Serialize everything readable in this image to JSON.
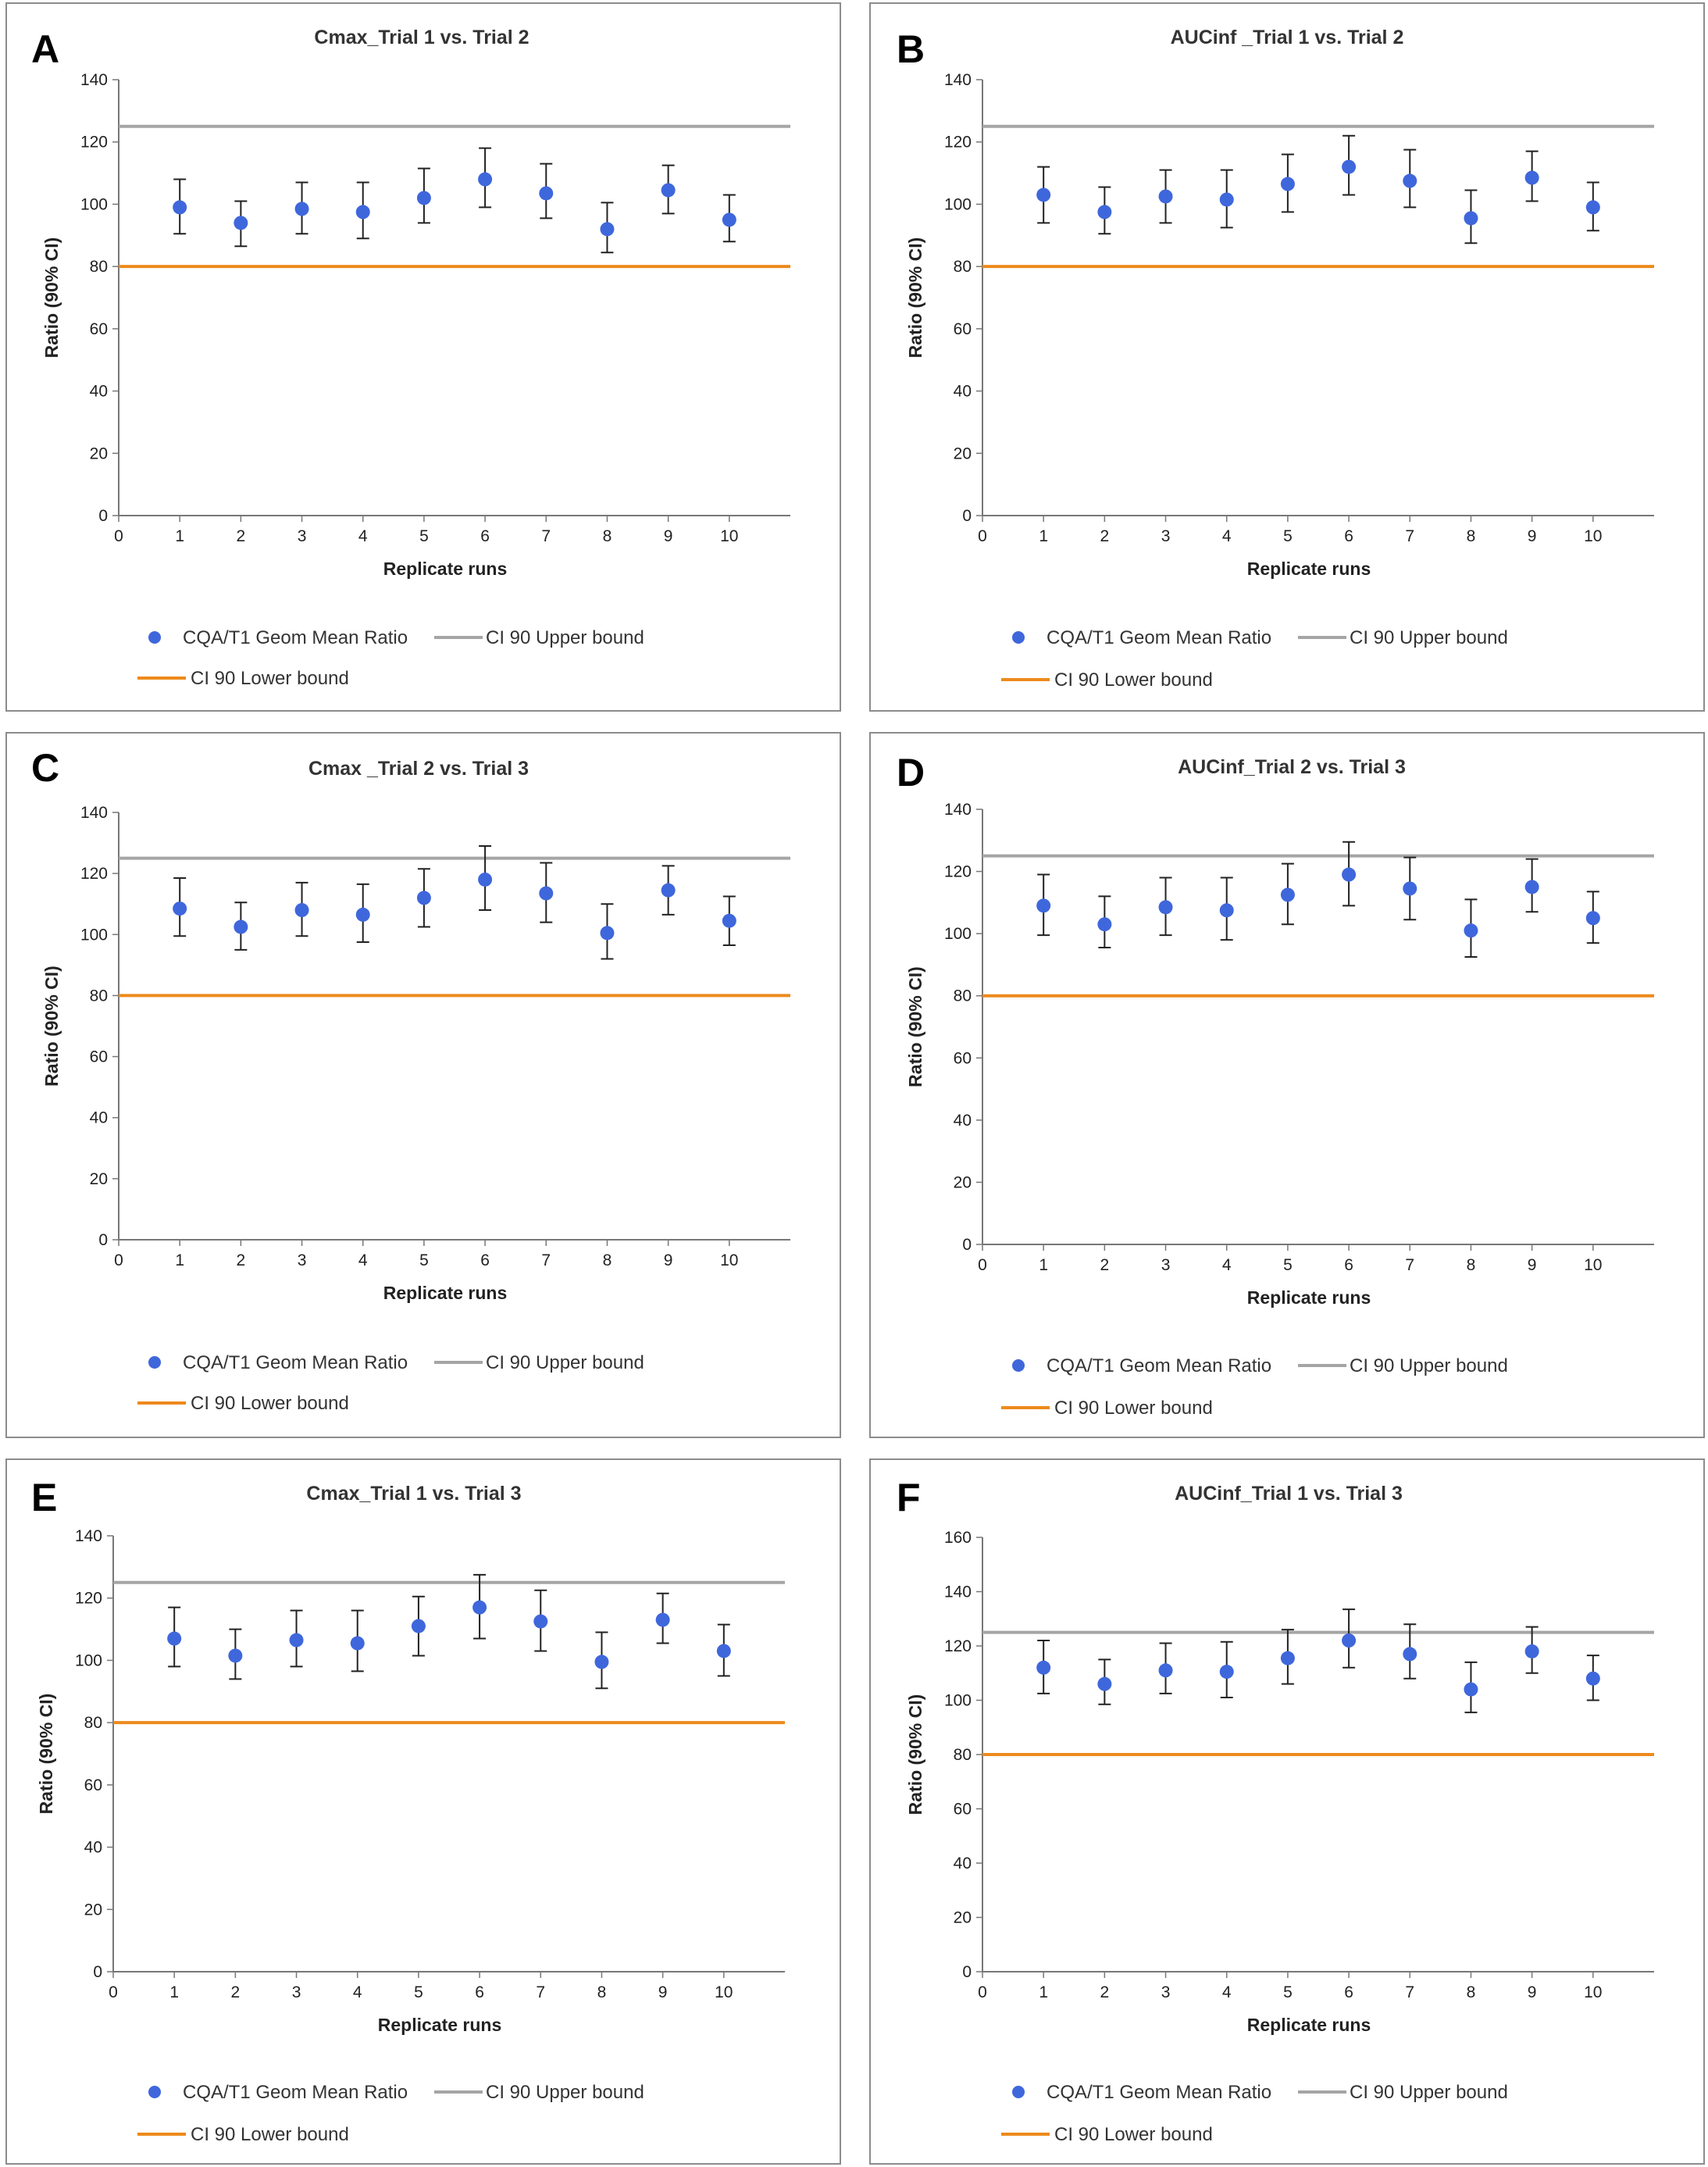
{
  "colors": {
    "point": "#3f67dc",
    "upper": "#a5a5a5",
    "lower": "#ed8a1c"
  },
  "legend": {
    "ratio": "CQA/T1 Geom Mean Ratio",
    "upper": "CI 90 Upper bound",
    "lower": "CI 90 Lower bound"
  },
  "chart_data": [
    {
      "type": "scatter",
      "panel": "A",
      "title": "Cmax_Trial 1 vs. Trial 2",
      "xlabel": "Replicate runs",
      "ylabel": "Ratio (90% CI)",
      "xlim": [
        0,
        11
      ],
      "ylim": [
        0,
        140
      ],
      "yticks": [
        0,
        20,
        40,
        60,
        80,
        100,
        120,
        140
      ],
      "xticks": [
        0,
        1,
        2,
        3,
        4,
        5,
        6,
        7,
        8,
        9,
        10
      ],
      "upper_bound": 125,
      "lower_bound": 80,
      "x": [
        1,
        2,
        3,
        4,
        5,
        6,
        7,
        8,
        9,
        10
      ],
      "y": [
        99,
        94,
        98.5,
        97.5,
        102,
        108,
        103.5,
        92,
        104.5,
        95
      ],
      "ci_low": [
        90.5,
        86.5,
        90.5,
        89,
        94,
        99,
        95.5,
        84.5,
        97,
        88
      ],
      "ci_high": [
        108,
        101,
        107,
        107,
        111.5,
        118,
        113,
        100.5,
        112.5,
        103
      ]
    },
    {
      "type": "scatter",
      "panel": "B",
      "title": "AUCinf _Trial 1 vs. Trial 2",
      "xlabel": "Replicate runs",
      "ylabel": "Ratio (90% CI)",
      "xlim": [
        0,
        11
      ],
      "ylim": [
        0,
        140
      ],
      "yticks": [
        0,
        20,
        40,
        60,
        80,
        100,
        120,
        140
      ],
      "xticks": [
        0,
        1,
        2,
        3,
        4,
        5,
        6,
        7,
        8,
        9,
        10
      ],
      "upper_bound": 125,
      "lower_bound": 80,
      "x": [
        1,
        2,
        3,
        4,
        5,
        6,
        7,
        8,
        9,
        10
      ],
      "y": [
        103,
        97.5,
        102.5,
        101.5,
        106.5,
        112,
        107.5,
        95.5,
        108.5,
        99
      ],
      "ci_low": [
        94,
        90.5,
        94,
        92.5,
        97.5,
        103,
        99,
        87.5,
        101,
        91.5
      ],
      "ci_high": [
        112,
        105.5,
        111,
        111,
        116,
        122,
        117.5,
        104.5,
        117,
        107
      ]
    },
    {
      "type": "scatter",
      "panel": "C",
      "title": "Cmax _Trial 2 vs. Trial 3",
      "xlabel": "Replicate runs",
      "ylabel": "Ratio (90% CI)",
      "xlim": [
        0,
        11
      ],
      "ylim": [
        0,
        140
      ],
      "yticks": [
        0,
        20,
        40,
        60,
        80,
        100,
        120,
        140
      ],
      "xticks": [
        0,
        1,
        2,
        3,
        4,
        5,
        6,
        7,
        8,
        9,
        10
      ],
      "upper_bound": 125,
      "lower_bound": 80,
      "x": [
        1,
        2,
        3,
        4,
        5,
        6,
        7,
        8,
        9,
        10
      ],
      "y": [
        108.5,
        102.5,
        108,
        106.5,
        112,
        118,
        113.5,
        100.5,
        114.5,
        104.5
      ],
      "ci_low": [
        99.5,
        95,
        99.5,
        97.5,
        102.5,
        108,
        104,
        92,
        106.5,
        96.5
      ],
      "ci_high": [
        118.5,
        110.5,
        117,
        116.5,
        121.5,
        129,
        123.5,
        110,
        122.5,
        112.5
      ]
    },
    {
      "type": "scatter",
      "panel": "D",
      "title": "AUCinf_Trial 2 vs. Trial 3",
      "xlabel": "Replicate runs",
      "ylabel": "Ratio (90% CI)",
      "xlim": [
        0,
        11
      ],
      "ylim": [
        0,
        140
      ],
      "yticks": [
        0,
        20,
        40,
        60,
        80,
        100,
        120,
        140
      ],
      "xticks": [
        0,
        1,
        2,
        3,
        4,
        5,
        6,
        7,
        8,
        9,
        10
      ],
      "upper_bound": 125,
      "lower_bound": 80,
      "x": [
        1,
        2,
        3,
        4,
        5,
        6,
        7,
        8,
        9,
        10
      ],
      "y": [
        109,
        103,
        108.5,
        107.5,
        112.5,
        119,
        114.5,
        101,
        115,
        105
      ],
      "ci_low": [
        99.5,
        95.5,
        99.5,
        98,
        103,
        109,
        104.5,
        92.5,
        107,
        97
      ],
      "ci_high": [
        119,
        112,
        118,
        118,
        122.5,
        129.5,
        124.5,
        111,
        124,
        113.5
      ]
    },
    {
      "type": "scatter",
      "panel": "E",
      "title": "Cmax_Trial 1 vs. Trial 3",
      "xlabel": "Replicate runs",
      "ylabel": "Ratio (90% CI)",
      "xlim": [
        0,
        11
      ],
      "ylim": [
        0,
        140
      ],
      "yticks": [
        0,
        20,
        40,
        60,
        80,
        100,
        120,
        140
      ],
      "xticks": [
        0,
        1,
        2,
        3,
        4,
        5,
        6,
        7,
        8,
        9,
        10
      ],
      "upper_bound": 125,
      "lower_bound": 80,
      "x": [
        1,
        2,
        3,
        4,
        5,
        6,
        7,
        8,
        9,
        10
      ],
      "y": [
        107,
        101.5,
        106.5,
        105.5,
        111,
        117,
        112.5,
        99.5,
        113,
        103
      ],
      "ci_low": [
        98,
        94,
        98,
        96.5,
        101.5,
        107,
        103,
        91,
        105.5,
        95
      ],
      "ci_high": [
        117,
        110,
        116,
        116,
        120.5,
        127.5,
        122.5,
        109,
        121.5,
        111.5
      ]
    },
    {
      "type": "scatter",
      "panel": "F",
      "title": "AUCinf_Trial 1 vs. Trial 3",
      "xlabel": "Replicate runs",
      "ylabel": "Ratio (90% CI)",
      "xlim": [
        0,
        11
      ],
      "ylim": [
        0,
        160
      ],
      "yticks": [
        0,
        20,
        40,
        60,
        80,
        100,
        120,
        140,
        160
      ],
      "xticks": [
        0,
        1,
        2,
        3,
        4,
        5,
        6,
        7,
        8,
        9,
        10
      ],
      "upper_bound": 125,
      "lower_bound": 80,
      "x": [
        1,
        2,
        3,
        4,
        5,
        6,
        7,
        8,
        9,
        10
      ],
      "y": [
        112,
        106,
        111,
        110.5,
        115.5,
        122,
        117,
        104,
        118,
        108
      ],
      "ci_low": [
        102.5,
        98.5,
        102.5,
        101,
        106,
        112,
        108,
        95.5,
        110,
        100
      ],
      "ci_high": [
        122,
        115,
        121,
        121.5,
        126,
        133.5,
        128,
        114,
        127,
        116.5
      ]
    }
  ]
}
